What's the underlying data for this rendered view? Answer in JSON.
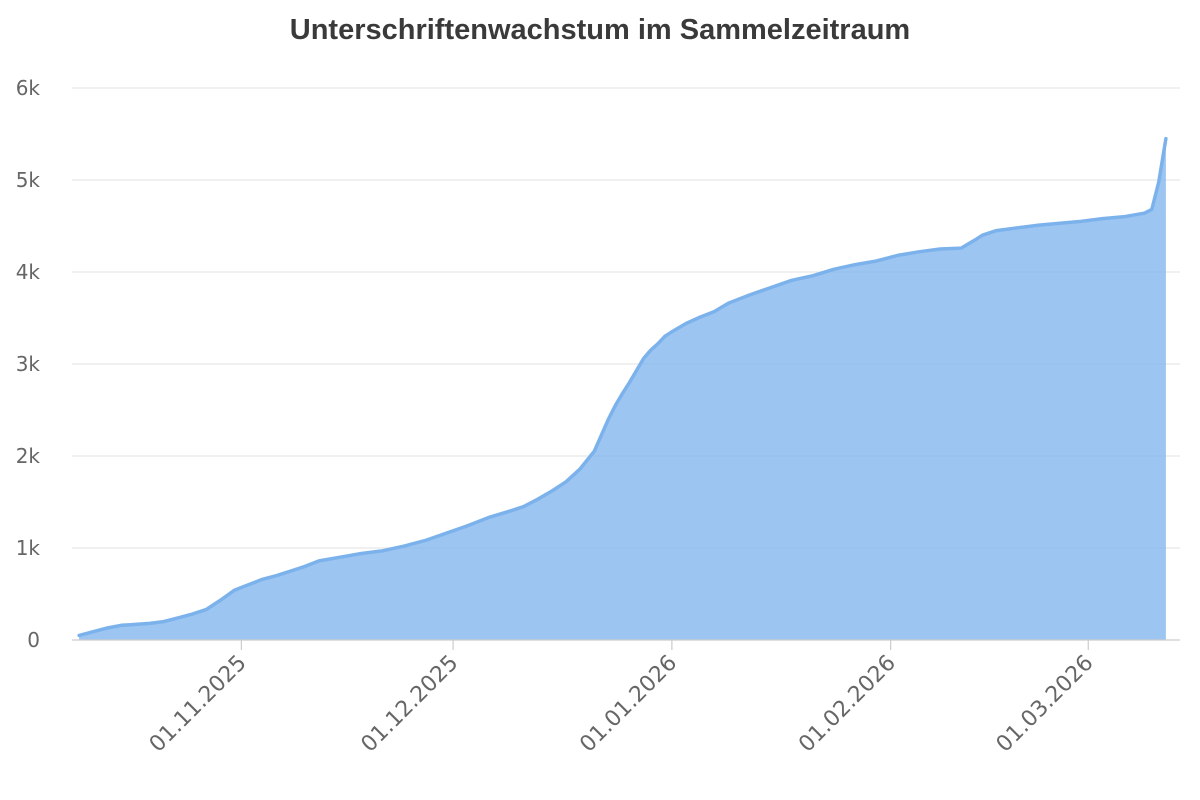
{
  "chart_data": {
    "type": "area",
    "title": "Unterschriftenwachstum im Sammelzeitraum",
    "xlabel": "",
    "ylabel": "",
    "grid": true,
    "colors": {
      "series": "#7cb2ec",
      "grid": "#e6e6e6",
      "text": "#666666",
      "title": "#3a3a3a"
    },
    "x_axis": {
      "type": "date",
      "range": [
        "2025-10-08",
        "2026-03-14"
      ],
      "ticks": [
        {
          "date": "2025-11-01",
          "label": "01.11.2025"
        },
        {
          "date": "2025-12-01",
          "label": "01.12.2025"
        },
        {
          "date": "2026-01-01",
          "label": "01.01.2026"
        },
        {
          "date": "2026-02-01",
          "label": "01.02.2026"
        },
        {
          "date": "2026-03-01",
          "label": "01.03.2026"
        }
      ]
    },
    "y_axis": {
      "ylim": [
        0,
        6000
      ],
      "ticks": [
        {
          "value": 0,
          "label": "0"
        },
        {
          "value": 1000,
          "label": "1k"
        },
        {
          "value": 2000,
          "label": "2k"
        },
        {
          "value": 3000,
          "label": "3k"
        },
        {
          "value": 4000,
          "label": "4k"
        },
        {
          "value": 5000,
          "label": "5k"
        },
        {
          "value": 6000,
          "label": "6k"
        }
      ]
    },
    "series": [
      {
        "x": [
          "2025-10-09",
          "2025-10-11",
          "2025-10-13",
          "2025-10-15",
          "2025-10-17",
          "2025-10-19",
          "2025-10-21",
          "2025-10-23",
          "2025-10-25",
          "2025-10-27",
          "2025-10-29",
          "2025-10-31",
          "2025-11-02",
          "2025-11-04",
          "2025-11-06",
          "2025-11-08",
          "2025-11-10",
          "2025-11-12",
          "2025-11-15",
          "2025-11-18",
          "2025-11-21",
          "2025-11-24",
          "2025-11-27",
          "2025-11-30",
          "2025-12-03",
          "2025-12-06",
          "2025-12-09",
          "2025-12-11",
          "2025-12-13",
          "2025-12-15",
          "2025-12-17",
          "2025-12-19",
          "2025-12-21",
          "2025-12-23",
          "2025-12-24",
          "2025-12-25",
          "2025-12-26",
          "2025-12-27",
          "2025-12-28",
          "2025-12-29",
          "2025-12-30",
          "2025-12-31",
          "2026-01-01",
          "2026-01-03",
          "2026-01-05",
          "2026-01-07",
          "2026-01-09",
          "2026-01-12",
          "2026-01-15",
          "2026-01-18",
          "2026-01-21",
          "2026-01-24",
          "2026-01-27",
          "2026-01-30",
          "2026-02-02",
          "2026-02-05",
          "2026-02-08",
          "2026-02-11",
          "2026-02-13",
          "2026-02-14",
          "2026-02-16",
          "2026-02-19",
          "2026-02-22",
          "2026-02-25",
          "2026-02-28",
          "2026-03-03",
          "2026-03-06",
          "2026-03-09",
          "2026-03-10",
          "2026-03-11",
          "2026-03-12"
        ],
        "values": [
          50,
          90,
          130,
          160,
          170,
          180,
          200,
          240,
          280,
          330,
          430,
          540,
          600,
          660,
          700,
          750,
          800,
          860,
          900,
          940,
          970,
          1020,
          1080,
          1160,
          1240,
          1330,
          1400,
          1450,
          1530,
          1620,
          1720,
          1860,
          2050,
          2400,
          2550,
          2680,
          2800,
          2930,
          3060,
          3150,
          3220,
          3300,
          3350,
          3440,
          3510,
          3570,
          3660,
          3750,
          3830,
          3910,
          3960,
          4030,
          4080,
          4120,
          4180,
          4220,
          4250,
          4260,
          4350,
          4400,
          4450,
          4480,
          4510,
          4530,
          4550,
          4580,
          4600,
          4640,
          4680,
          4980,
          5450
        ]
      }
    ]
  }
}
